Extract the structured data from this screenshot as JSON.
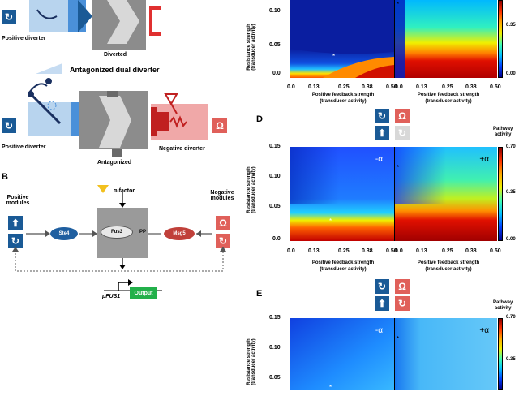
{
  "left": {
    "diverted_label": "Diverted",
    "positive_diverter_1": "Positive diverter",
    "antagonized_dual_diverter_title": "Antagonized dual diverter",
    "positive_diverter_2": "Positive diverter",
    "negative_diverter": "Negative diverter",
    "antagonized_label": "Antagonized",
    "panel_b": "B",
    "alpha_factor": "α-factor",
    "positive_modules": "Positive\nmodules",
    "negative_modules": "Negative\nmodules",
    "ste4": "Ste4",
    "fus3": "Fus3",
    "pp": "PP",
    "msg5": "Msg5",
    "pfus1": "pFUS1",
    "output": "Output"
  },
  "colors": {
    "module_blue": "#1a5a96",
    "module_red": "#e0605a",
    "output_green": "#22b04a",
    "node_blue": "#1f5fa0",
    "node_red": "#c0403a"
  },
  "panels": {
    "top": {
      "ylabel": "Resistance strength\n(transducer activity)",
      "yticks": [
        "0.10",
        "0.05",
        "0.0"
      ],
      "xticks_left": [
        "0.0",
        "0.13",
        "0.25",
        "0.38",
        "0.50"
      ],
      "xticks_right": [
        "0.0",
        "0.13",
        "0.25",
        "0.38",
        "0.50"
      ],
      "xlabel": "Positive feedback  strength\n(transducer activity)",
      "cbar_ticks": [
        "0.35",
        "0.00"
      ]
    },
    "D": {
      "letter": "D",
      "ylabel": "Resistance strength\n(transducer activity)",
      "yticks": [
        "0.15",
        "0.10",
        "0.05",
        "0.0"
      ],
      "xticks": [
        "0.0",
        "0.13",
        "0.25",
        "0.38",
        "0.50"
      ],
      "xlabel": "Positive feedback  strength\n(transducer activity)",
      "minus_alpha": "-α",
      "plus_alpha": "+α",
      "cbar_title": "Pathway\nactivity",
      "cbar_ticks": [
        "0.70",
        "0.35",
        "0.00"
      ]
    },
    "E": {
      "letter": "E",
      "ylabel": "Resistance strength\n(transducer activity)",
      "yticks": [
        "0.15",
        "0.10",
        "0.05"
      ],
      "minus_alpha": "-α",
      "plus_alpha": "+α",
      "cbar_title": "Pathway\nactivity",
      "cbar_ticks": [
        "0.70",
        "0.35"
      ]
    }
  }
}
